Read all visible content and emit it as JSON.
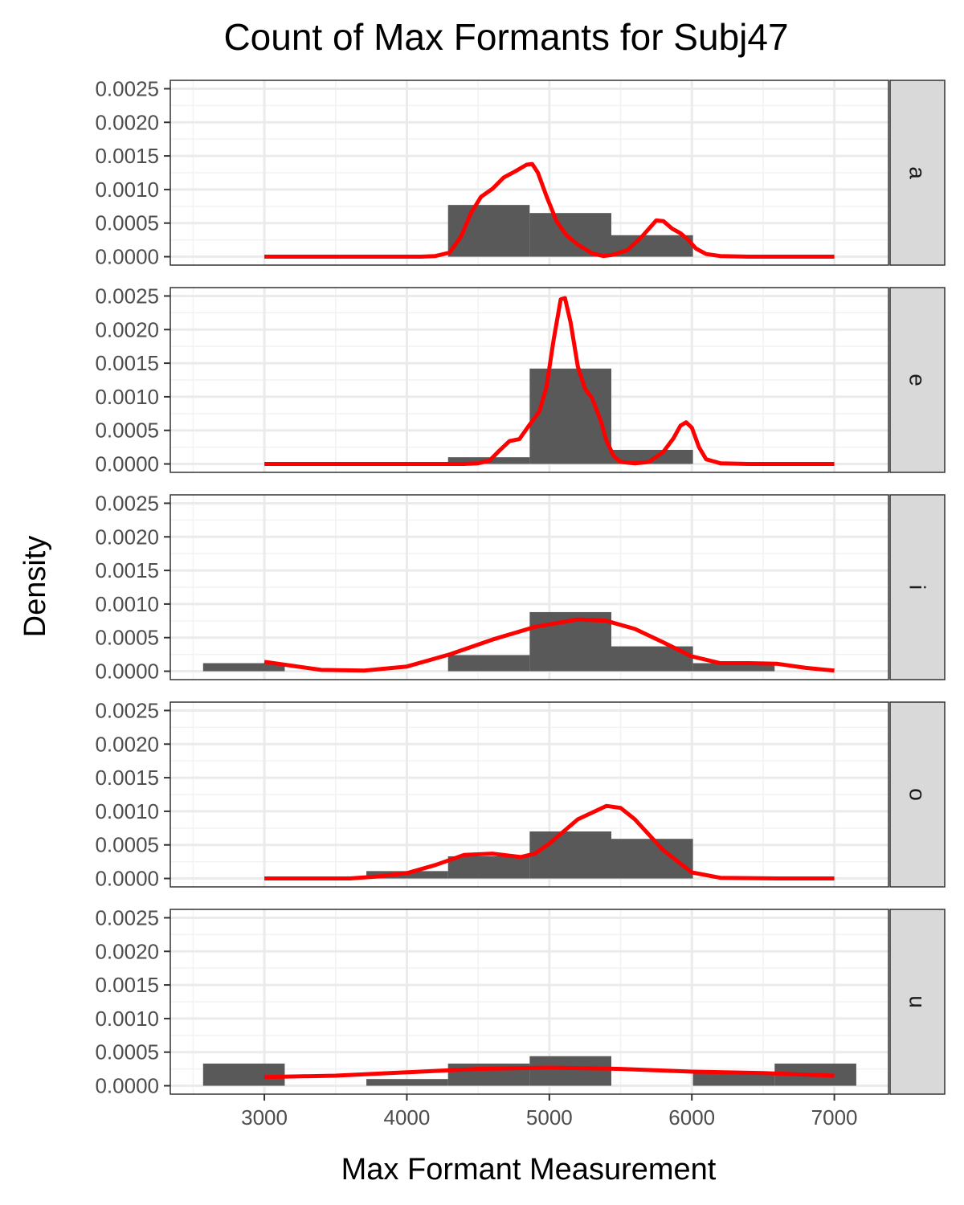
{
  "chart_data": {
    "type": "histogram-density-facets",
    "title": "Count of Max Formants for Subj47",
    "xlabel": "Max Formant Measurement",
    "ylabel": "Density",
    "xlim": [
      2340,
      7380
    ],
    "ylim": [
      -0.000125,
      0.002625
    ],
    "x_ticks": [
      3000,
      4000,
      5000,
      6000,
      7000
    ],
    "x_tick_labels": [
      "3000",
      "4000",
      "5000",
      "6000",
      "7000"
    ],
    "y_ticks": [
      0,
      0.0005,
      0.001,
      0.0015,
      0.002,
      0.0025
    ],
    "y_tick_labels": [
      "0.0000",
      "0.0005",
      "0.0010",
      "0.0015",
      "0.0020",
      "0.0025"
    ],
    "bin_edges": [
      2570,
      3143,
      3716,
      4289,
      4862,
      5435,
      6008,
      6581,
      7154
    ],
    "bar_color": "#595959",
    "curve_color": "#ff0000",
    "grid": true,
    "facets": [
      {
        "label": "a",
        "histogram": [
          0,
          0,
          0,
          0.00077,
          0.00065,
          0.00032,
          0,
          0
        ],
        "density": [
          [
            3000,
            0
          ],
          [
            4100,
            0
          ],
          [
            4200,
            1e-05
          ],
          [
            4300,
            6e-05
          ],
          [
            4380,
            0.0003
          ],
          [
            4450,
            0.00065
          ],
          [
            4520,
            0.00089
          ],
          [
            4600,
            0.00101
          ],
          [
            4680,
            0.00118
          ],
          [
            4760,
            0.00127
          ],
          [
            4840,
            0.00137
          ],
          [
            4880,
            0.00138
          ],
          [
            4920,
            0.00125
          ],
          [
            4980,
            0.0009
          ],
          [
            5050,
            0.00053
          ],
          [
            5120,
            0.00032
          ],
          [
            5200,
            0.00018
          ],
          [
            5300,
            5e-05
          ],
          [
            5380,
            1e-05
          ],
          [
            5450,
            3e-05
          ],
          [
            5550,
            0.0001
          ],
          [
            5650,
            0.0003
          ],
          [
            5750,
            0.00054
          ],
          [
            5800,
            0.00053
          ],
          [
            5860,
            0.00042
          ],
          [
            5920,
            0.00035
          ],
          [
            5970,
            0.00026
          ],
          [
            6030,
            0.00012
          ],
          [
            6100,
            4e-05
          ],
          [
            6200,
            1e-05
          ],
          [
            6400,
            0
          ],
          [
            7000,
            0
          ]
        ]
      },
      {
        "label": "e",
        "histogram": [
          0,
          0,
          0,
          0.0001,
          0.00142,
          0.00021,
          0,
          0
        ],
        "density": [
          [
            3000,
            0
          ],
          [
            4400,
            0
          ],
          [
            4500,
            1e-05
          ],
          [
            4580,
            5e-05
          ],
          [
            4650,
            0.0002
          ],
          [
            4720,
            0.00034
          ],
          [
            4790,
            0.00037
          ],
          [
            4850,
            0.00055
          ],
          [
            4930,
            0.00078
          ],
          [
            4980,
            0.00115
          ],
          [
            5030,
            0.00185
          ],
          [
            5080,
            0.00245
          ],
          [
            5110,
            0.00247
          ],
          [
            5150,
            0.0021
          ],
          [
            5200,
            0.00145
          ],
          [
            5250,
            0.00112
          ],
          [
            5300,
            0.00098
          ],
          [
            5360,
            0.00065
          ],
          [
            5400,
            0.00035
          ],
          [
            5450,
            0.00012
          ],
          [
            5500,
            3e-05
          ],
          [
            5600,
            1e-05
          ],
          [
            5700,
            3e-05
          ],
          [
            5800,
            0.00018
          ],
          [
            5870,
            0.00038
          ],
          [
            5920,
            0.00057
          ],
          [
            5960,
            0.00062
          ],
          [
            6000,
            0.00054
          ],
          [
            6050,
            0.00025
          ],
          [
            6100,
            7e-05
          ],
          [
            6200,
            1e-05
          ],
          [
            6400,
            0
          ],
          [
            7000,
            0
          ]
        ]
      },
      {
        "label": "i",
        "histogram": [
          0.00012,
          0,
          0,
          0.00024,
          0.00088,
          0.00037,
          0.00012,
          0
        ],
        "density": [
          [
            3000,
            0.00014
          ],
          [
            3200,
            8e-05
          ],
          [
            3400,
            2e-05
          ],
          [
            3700,
            1e-05
          ],
          [
            4000,
            7e-05
          ],
          [
            4300,
            0.00025
          ],
          [
            4600,
            0.00047
          ],
          [
            4900,
            0.00066
          ],
          [
            5200,
            0.00077
          ],
          [
            5400,
            0.00075
          ],
          [
            5600,
            0.00063
          ],
          [
            5800,
            0.00043
          ],
          [
            6000,
            0.00022
          ],
          [
            6200,
            0.00012
          ],
          [
            6400,
            0.00012
          ],
          [
            6600,
            0.00011
          ],
          [
            6800,
            5e-05
          ],
          [
            7000,
            1e-05
          ]
        ]
      },
      {
        "label": "o",
        "histogram": [
          0,
          0,
          0.00011,
          0.00033,
          0.0007,
          0.00059,
          0,
          0
        ],
        "density": [
          [
            3000,
            0
          ],
          [
            3600,
            0
          ],
          [
            3800,
            3e-05
          ],
          [
            4000,
            8e-05
          ],
          [
            4200,
            0.0002
          ],
          [
            4400,
            0.00035
          ],
          [
            4600,
            0.00037
          ],
          [
            4800,
            0.00032
          ],
          [
            4900,
            0.00037
          ],
          [
            5000,
            0.00052
          ],
          [
            5200,
            0.00088
          ],
          [
            5400,
            0.00108
          ],
          [
            5500,
            0.00105
          ],
          [
            5600,
            0.00088
          ],
          [
            5800,
            0.00042
          ],
          [
            6000,
            9e-05
          ],
          [
            6200,
            1e-05
          ],
          [
            6600,
            0
          ],
          [
            7000,
            0
          ]
        ]
      },
      {
        "label": "u",
        "histogram": [
          0.00033,
          0,
          0.0001,
          0.00033,
          0.00044,
          0,
          0.00021,
          0.00033
        ],
        "density": [
          [
            3000,
            0.00013
          ],
          [
            3500,
            0.00015
          ],
          [
            4000,
            0.0002
          ],
          [
            4500,
            0.00025
          ],
          [
            5000,
            0.00027
          ],
          [
            5500,
            0.00025
          ],
          [
            6000,
            0.00021
          ],
          [
            6500,
            0.00019
          ],
          [
            7000,
            0.00015
          ]
        ]
      }
    ]
  }
}
